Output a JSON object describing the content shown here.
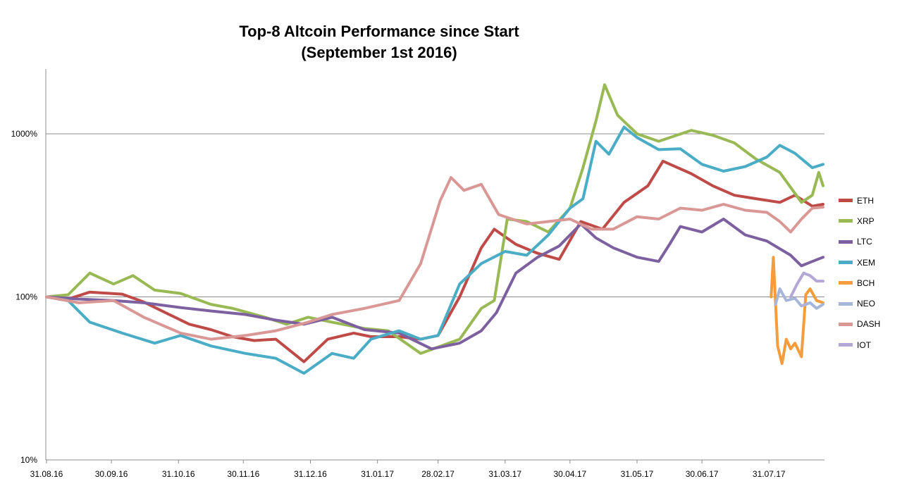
{
  "chart_data": {
    "type": "line",
    "title_lines": [
      "Top-8 Altcoin Performance since Start",
      "(September 1st 2016)"
    ],
    "y_scale": "log",
    "ylim": [
      10,
      2500
    ],
    "y_ticks": [
      {
        "value": 10,
        "label": "10%"
      },
      {
        "value": 100,
        "label": "100%"
      },
      {
        "value": 1000,
        "label": "1000%"
      }
    ],
    "xlim": [
      "2016-08-31",
      "2017-08-25"
    ],
    "x_ticks": [
      {
        "date": "2016-08-31",
        "label": "31.08.16"
      },
      {
        "date": "2016-09-30",
        "label": "30.09.16"
      },
      {
        "date": "2016-10-31",
        "label": "31.10.16"
      },
      {
        "date": "2016-11-30",
        "label": "30.11.16"
      },
      {
        "date": "2016-12-31",
        "label": "31.12.16"
      },
      {
        "date": "2017-01-31",
        "label": "31.01.17"
      },
      {
        "date": "2017-02-28",
        "label": "28.02.17"
      },
      {
        "date": "2017-03-31",
        "label": "31.03.17"
      },
      {
        "date": "2017-04-30",
        "label": "30.04.17"
      },
      {
        "date": "2017-05-31",
        "label": "31.05.17"
      },
      {
        "date": "2017-06-30",
        "label": "30.06.17"
      },
      {
        "date": "2017-07-31",
        "label": "31.07.17"
      }
    ],
    "grid": "horizontal major lines",
    "legend_position": "right",
    "series": [
      {
        "name": "ETH",
        "color": "#be4b48",
        "points": [
          [
            "2016-08-31",
            100
          ],
          [
            "2016-09-10",
            97
          ],
          [
            "2016-09-20",
            107
          ],
          [
            "2016-10-05",
            104
          ],
          [
            "2016-10-15",
            93
          ],
          [
            "2016-10-25",
            80
          ],
          [
            "2016-11-05",
            68
          ],
          [
            "2016-11-15",
            63
          ],
          [
            "2016-11-25",
            57
          ],
          [
            "2016-12-05",
            54
          ],
          [
            "2016-12-15",
            55
          ],
          [
            "2016-12-28",
            40
          ],
          [
            "2017-01-08",
            55
          ],
          [
            "2017-01-20",
            60
          ],
          [
            "2017-01-28",
            57
          ],
          [
            "2017-02-10",
            57
          ],
          [
            "2017-02-20",
            55
          ],
          [
            "2017-02-28",
            58
          ],
          [
            "2017-03-10",
            100
          ],
          [
            "2017-03-20",
            200
          ],
          [
            "2017-03-26",
            260
          ],
          [
            "2017-04-05",
            210
          ],
          [
            "2017-04-15",
            185
          ],
          [
            "2017-04-25",
            170
          ],
          [
            "2017-05-05",
            290
          ],
          [
            "2017-05-15",
            260
          ],
          [
            "2017-05-25",
            380
          ],
          [
            "2017-06-05",
            480
          ],
          [
            "2017-06-12",
            680
          ],
          [
            "2017-06-25",
            570
          ],
          [
            "2017-07-05",
            480
          ],
          [
            "2017-07-15",
            420
          ],
          [
            "2017-07-25",
            400
          ],
          [
            "2017-08-05",
            380
          ],
          [
            "2017-08-12",
            420
          ],
          [
            "2017-08-20",
            360
          ],
          [
            "2017-08-25",
            370
          ]
        ]
      },
      {
        "name": "XRP",
        "color": "#98b954",
        "points": [
          [
            "2016-08-31",
            100
          ],
          [
            "2016-09-10",
            103
          ],
          [
            "2016-09-20",
            140
          ],
          [
            "2016-10-01",
            120
          ],
          [
            "2016-10-10",
            135
          ],
          [
            "2016-10-20",
            110
          ],
          [
            "2016-11-01",
            105
          ],
          [
            "2016-11-15",
            90
          ],
          [
            "2016-11-25",
            85
          ],
          [
            "2016-12-10",
            75
          ],
          [
            "2016-12-20",
            68
          ],
          [
            "2016-12-30",
            75
          ],
          [
            "2017-01-10",
            70
          ],
          [
            "2017-01-25",
            64
          ],
          [
            "2017-02-05",
            62
          ],
          [
            "2017-02-20",
            45
          ],
          [
            "2017-03-10",
            55
          ],
          [
            "2017-03-20",
            85
          ],
          [
            "2017-03-26",
            95
          ],
          [
            "2017-04-01",
            300
          ],
          [
            "2017-04-10",
            290
          ],
          [
            "2017-04-20",
            250
          ],
          [
            "2017-04-30",
            350
          ],
          [
            "2017-05-06",
            620
          ],
          [
            "2017-05-12",
            1200
          ],
          [
            "2017-05-16",
            2000
          ],
          [
            "2017-05-22",
            1300
          ],
          [
            "2017-05-31",
            1000
          ],
          [
            "2017-06-10",
            900
          ],
          [
            "2017-06-25",
            1050
          ],
          [
            "2017-07-05",
            980
          ],
          [
            "2017-07-15",
            880
          ],
          [
            "2017-07-25",
            700
          ],
          [
            "2017-08-05",
            580
          ],
          [
            "2017-08-15",
            380
          ],
          [
            "2017-08-20",
            420
          ],
          [
            "2017-08-23",
            580
          ],
          [
            "2017-08-25",
            480
          ]
        ]
      },
      {
        "name": "LTC",
        "color": "#7d60a0",
        "points": [
          [
            "2016-08-31",
            100
          ],
          [
            "2016-09-15",
            97
          ],
          [
            "2016-10-01",
            95
          ],
          [
            "2016-10-15",
            92
          ],
          [
            "2016-11-01",
            86
          ],
          [
            "2016-11-15",
            82
          ],
          [
            "2016-12-01",
            78
          ],
          [
            "2016-12-15",
            72
          ],
          [
            "2016-12-28",
            68
          ],
          [
            "2017-01-10",
            75
          ],
          [
            "2017-01-25",
            63
          ],
          [
            "2017-02-10",
            60
          ],
          [
            "2017-02-25",
            48
          ],
          [
            "2017-03-10",
            52
          ],
          [
            "2017-03-20",
            62
          ],
          [
            "2017-03-27",
            80
          ],
          [
            "2017-04-05",
            140
          ],
          [
            "2017-04-15",
            175
          ],
          [
            "2017-04-25",
            205
          ],
          [
            "2017-05-05",
            280
          ],
          [
            "2017-05-12",
            230
          ],
          [
            "2017-05-20",
            200
          ],
          [
            "2017-05-31",
            175
          ],
          [
            "2017-06-10",
            165
          ],
          [
            "2017-06-15",
            210
          ],
          [
            "2017-06-20",
            270
          ],
          [
            "2017-06-30",
            250
          ],
          [
            "2017-07-10",
            300
          ],
          [
            "2017-07-20",
            240
          ],
          [
            "2017-07-30",
            220
          ],
          [
            "2017-08-10",
            180
          ],
          [
            "2017-08-15",
            155
          ],
          [
            "2017-08-20",
            165
          ],
          [
            "2017-08-25",
            175
          ]
        ]
      },
      {
        "name": "XEM",
        "color": "#4aacc5",
        "points": [
          [
            "2016-08-31",
            100
          ],
          [
            "2016-09-10",
            95
          ],
          [
            "2016-09-20",
            70
          ],
          [
            "2016-10-05",
            60
          ],
          [
            "2016-10-20",
            52
          ],
          [
            "2016-11-01",
            58
          ],
          [
            "2016-11-15",
            50
          ],
          [
            "2016-12-01",
            45
          ],
          [
            "2016-12-15",
            42
          ],
          [
            "2016-12-28",
            34
          ],
          [
            "2017-01-10",
            45
          ],
          [
            "2017-01-20",
            42
          ],
          [
            "2017-01-28",
            55
          ],
          [
            "2017-02-10",
            62
          ],
          [
            "2017-02-20",
            55
          ],
          [
            "2017-02-28",
            58
          ],
          [
            "2017-03-10",
            120
          ],
          [
            "2017-03-20",
            160
          ],
          [
            "2017-03-31",
            190
          ],
          [
            "2017-04-10",
            180
          ],
          [
            "2017-04-20",
            240
          ],
          [
            "2017-04-30",
            350
          ],
          [
            "2017-05-06",
            400
          ],
          [
            "2017-05-12",
            900
          ],
          [
            "2017-05-18",
            750
          ],
          [
            "2017-05-25",
            1100
          ],
          [
            "2017-05-31",
            950
          ],
          [
            "2017-06-10",
            800
          ],
          [
            "2017-06-20",
            810
          ],
          [
            "2017-06-30",
            650
          ],
          [
            "2017-07-10",
            590
          ],
          [
            "2017-07-20",
            630
          ],
          [
            "2017-07-30",
            720
          ],
          [
            "2017-08-05",
            850
          ],
          [
            "2017-08-12",
            760
          ],
          [
            "2017-08-20",
            620
          ],
          [
            "2017-08-25",
            650
          ]
        ]
      },
      {
        "name": "BCH",
        "color": "#f59d3d",
        "points": [
          [
            "2017-08-01",
            100
          ],
          [
            "2017-08-02",
            175
          ],
          [
            "2017-08-04",
            50
          ],
          [
            "2017-08-06",
            39
          ],
          [
            "2017-08-08",
            55
          ],
          [
            "2017-08-10",
            48
          ],
          [
            "2017-08-12",
            52
          ],
          [
            "2017-08-15",
            43
          ],
          [
            "2017-08-17",
            103
          ],
          [
            "2017-08-19",
            112
          ],
          [
            "2017-08-22",
            95
          ],
          [
            "2017-08-25",
            92
          ]
        ]
      },
      {
        "name": "NEO",
        "color": "#a5b6da",
        "points": [
          [
            "2017-08-03",
            90
          ],
          [
            "2017-08-05",
            112
          ],
          [
            "2017-08-08",
            95
          ],
          [
            "2017-08-12",
            98
          ],
          [
            "2017-08-15",
            88
          ],
          [
            "2017-08-19",
            92
          ],
          [
            "2017-08-22",
            85
          ],
          [
            "2017-08-25",
            90
          ]
        ]
      },
      {
        "name": "DASH",
        "color": "#d99795",
        "points": [
          [
            "2016-08-31",
            100
          ],
          [
            "2016-09-15",
            92
          ],
          [
            "2016-10-01",
            95
          ],
          [
            "2016-10-15",
            75
          ],
          [
            "2016-11-01",
            60
          ],
          [
            "2016-11-15",
            55
          ],
          [
            "2016-12-01",
            58
          ],
          [
            "2016-12-15",
            62
          ],
          [
            "2016-12-30",
            70
          ],
          [
            "2017-01-10",
            78
          ],
          [
            "2017-01-25",
            85
          ],
          [
            "2017-02-10",
            95
          ],
          [
            "2017-02-20",
            160
          ],
          [
            "2017-03-01",
            390
          ],
          [
            "2017-03-06",
            540
          ],
          [
            "2017-03-12",
            450
          ],
          [
            "2017-03-20",
            490
          ],
          [
            "2017-03-28",
            320
          ],
          [
            "2017-04-10",
            280
          ],
          [
            "2017-04-20",
            290
          ],
          [
            "2017-04-30",
            300
          ],
          [
            "2017-05-10",
            260
          ],
          [
            "2017-05-20",
            260
          ],
          [
            "2017-05-31",
            310
          ],
          [
            "2017-06-10",
            300
          ],
          [
            "2017-06-20",
            350
          ],
          [
            "2017-06-30",
            340
          ],
          [
            "2017-07-10",
            370
          ],
          [
            "2017-07-20",
            340
          ],
          [
            "2017-07-30",
            330
          ],
          [
            "2017-08-05",
            290
          ],
          [
            "2017-08-10",
            250
          ],
          [
            "2017-08-15",
            300
          ],
          [
            "2017-08-20",
            350
          ],
          [
            "2017-08-25",
            355
          ]
        ]
      },
      {
        "name": "IOT",
        "color": "#b4a7d6",
        "points": [
          [
            "2017-08-10",
            100
          ],
          [
            "2017-08-13",
            120
          ],
          [
            "2017-08-16",
            140
          ],
          [
            "2017-08-19",
            135
          ],
          [
            "2017-08-22",
            125
          ],
          [
            "2017-08-25",
            125
          ]
        ]
      }
    ]
  }
}
